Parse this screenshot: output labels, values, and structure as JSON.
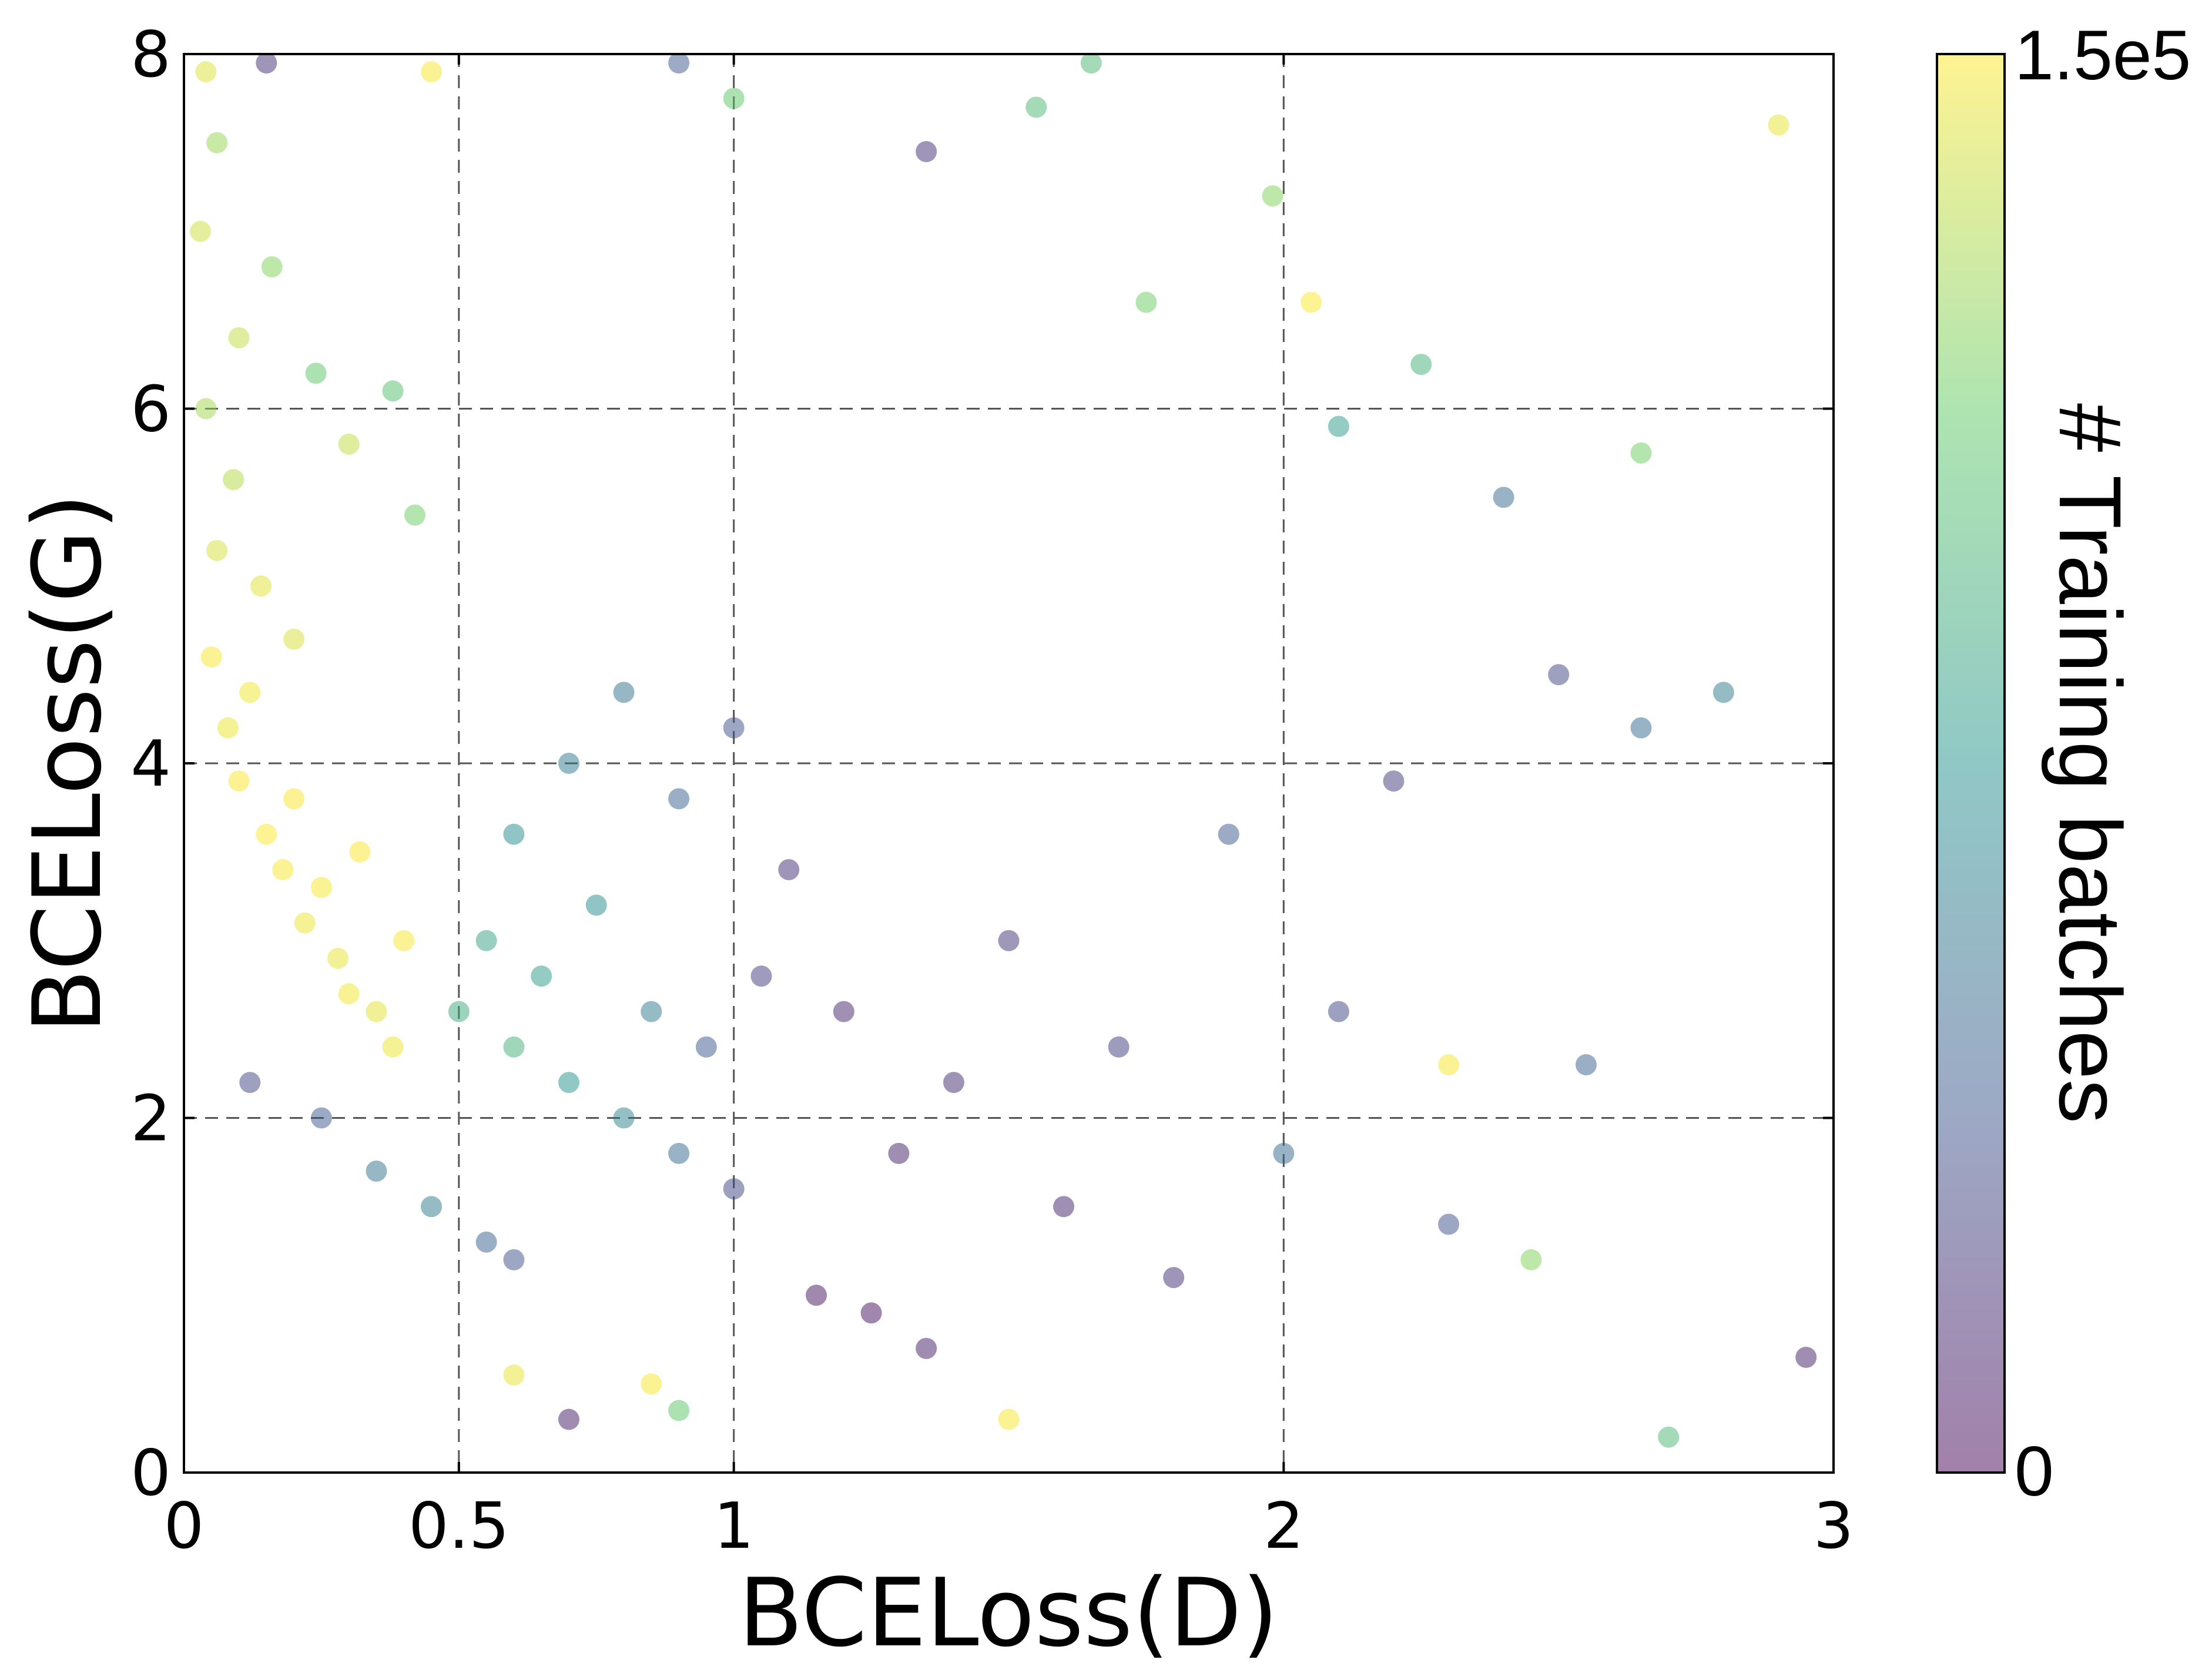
{
  "chart_data": {
    "type": "scatter",
    "title": "",
    "xlabel": "BCELoss(D)",
    "ylabel": "BCELoss(G)",
    "xlim": [
      0,
      3
    ],
    "ylim": [
      0,
      8
    ],
    "xticks": [
      {
        "value": 0,
        "label": "0"
      },
      {
        "value": 0.5,
        "label": "0.5"
      },
      {
        "value": 1,
        "label": "1"
      },
      {
        "value": 2,
        "label": "2"
      },
      {
        "value": 3,
        "label": "3"
      }
    ],
    "yticks": [
      {
        "value": 0,
        "label": "0"
      },
      {
        "value": 2,
        "label": "2"
      },
      {
        "value": 4,
        "label": "4"
      },
      {
        "value": 6,
        "label": "6"
      },
      {
        "value": 8,
        "label": "8"
      }
    ],
    "grid": true,
    "colorbar": {
      "label": "# Training batches",
      "min": 0,
      "max": 150000,
      "tick_min_label": "0",
      "tick_max_label": "1.5e5",
      "colormap": "viridis",
      "colors": [
        "#440154",
        "#3b528b",
        "#21918c",
        "#5ec962",
        "#fde725"
      ],
      "alpha": 0.5
    },
    "points": [
      {
        "x": 0.05,
        "y": 4.6,
        "c": 148000
      },
      {
        "x": 0.08,
        "y": 4.2,
        "c": 146000
      },
      {
        "x": 0.1,
        "y": 3.9,
        "c": 149000
      },
      {
        "x": 0.12,
        "y": 4.4,
        "c": 147000
      },
      {
        "x": 0.15,
        "y": 3.6,
        "c": 150000
      },
      {
        "x": 0.18,
        "y": 3.4,
        "c": 148000
      },
      {
        "x": 0.2,
        "y": 3.8,
        "c": 149000
      },
      {
        "x": 0.22,
        "y": 3.1,
        "c": 146000
      },
      {
        "x": 0.25,
        "y": 3.3,
        "c": 148000
      },
      {
        "x": 0.28,
        "y": 2.9,
        "c": 145000
      },
      {
        "x": 0.3,
        "y": 2.7,
        "c": 147000
      },
      {
        "x": 0.32,
        "y": 3.5,
        "c": 149000
      },
      {
        "x": 0.35,
        "y": 2.6,
        "c": 144000
      },
      {
        "x": 0.38,
        "y": 2.4,
        "c": 146000
      },
      {
        "x": 0.4,
        "y": 3.0,
        "c": 148000
      },
      {
        "x": 0.06,
        "y": 5.2,
        "c": 140000
      },
      {
        "x": 0.09,
        "y": 5.6,
        "c": 132000
      },
      {
        "x": 0.04,
        "y": 6.0,
        "c": 128000
      },
      {
        "x": 0.1,
        "y": 6.4,
        "c": 135000
      },
      {
        "x": 0.14,
        "y": 5.0,
        "c": 143000
      },
      {
        "x": 0.2,
        "y": 4.7,
        "c": 141000
      },
      {
        "x": 0.03,
        "y": 7.0,
        "c": 138000
      },
      {
        "x": 0.06,
        "y": 7.5,
        "c": 125000
      },
      {
        "x": 0.04,
        "y": 7.9,
        "c": 142000
      },
      {
        "x": 0.16,
        "y": 6.8,
        "c": 120000
      },
      {
        "x": 0.24,
        "y": 6.2,
        "c": 110000
      },
      {
        "x": 0.3,
        "y": 5.8,
        "c": 135000
      },
      {
        "x": 0.45,
        "y": 7.9,
        "c": 148000
      },
      {
        "x": 0.38,
        "y": 6.1,
        "c": 105000
      },
      {
        "x": 0.42,
        "y": 5.4,
        "c": 115000
      },
      {
        "x": 0.12,
        "y": 2.2,
        "c": 30000
      },
      {
        "x": 0.25,
        "y": 2.0,
        "c": 40000
      },
      {
        "x": 0.35,
        "y": 1.7,
        "c": 55000
      },
      {
        "x": 0.45,
        "y": 1.5,
        "c": 60000
      },
      {
        "x": 0.55,
        "y": 1.3,
        "c": 45000
      },
      {
        "x": 0.6,
        "y": 1.2,
        "c": 35000
      },
      {
        "x": 0.5,
        "y": 2.6,
        "c": 90000
      },
      {
        "x": 0.55,
        "y": 3.0,
        "c": 85000
      },
      {
        "x": 0.6,
        "y": 2.4,
        "c": 95000
      },
      {
        "x": 0.65,
        "y": 2.8,
        "c": 80000
      },
      {
        "x": 0.7,
        "y": 2.2,
        "c": 75000
      },
      {
        "x": 0.75,
        "y": 3.2,
        "c": 70000
      },
      {
        "x": 0.8,
        "y": 2.0,
        "c": 65000
      },
      {
        "x": 0.85,
        "y": 2.6,
        "c": 60000
      },
      {
        "x": 0.9,
        "y": 1.8,
        "c": 50000
      },
      {
        "x": 0.95,
        "y": 2.4,
        "c": 40000
      },
      {
        "x": 1.0,
        "y": 1.6,
        "c": 30000
      },
      {
        "x": 1.05,
        "y": 2.8,
        "c": 25000
      },
      {
        "x": 0.6,
        "y": 3.6,
        "c": 70000
      },
      {
        "x": 0.7,
        "y": 4.0,
        "c": 60000
      },
      {
        "x": 0.8,
        "y": 4.4,
        "c": 55000
      },
      {
        "x": 0.9,
        "y": 3.8,
        "c": 45000
      },
      {
        "x": 1.0,
        "y": 4.2,
        "c": 35000
      },
      {
        "x": 1.1,
        "y": 3.4,
        "c": 20000
      },
      {
        "x": 1.2,
        "y": 2.6,
        "c": 15000
      },
      {
        "x": 1.3,
        "y": 1.8,
        "c": 12000
      },
      {
        "x": 1.15,
        "y": 1.0,
        "c": 8000
      },
      {
        "x": 1.25,
        "y": 0.9,
        "c": 6000
      },
      {
        "x": 1.35,
        "y": 0.7,
        "c": 10000
      },
      {
        "x": 1.4,
        "y": 2.2,
        "c": 18000
      },
      {
        "x": 1.5,
        "y": 3.0,
        "c": 22000
      },
      {
        "x": 1.6,
        "y": 1.5,
        "c": 14000
      },
      {
        "x": 1.7,
        "y": 2.4,
        "c": 26000
      },
      {
        "x": 1.8,
        "y": 1.1,
        "c": 20000
      },
      {
        "x": 1.9,
        "y": 3.6,
        "c": 40000
      },
      {
        "x": 2.0,
        "y": 1.8,
        "c": 50000
      },
      {
        "x": 2.1,
        "y": 2.6,
        "c": 30000
      },
      {
        "x": 2.2,
        "y": 3.9,
        "c": 25000
      },
      {
        "x": 2.3,
        "y": 1.4,
        "c": 35000
      },
      {
        "x": 2.45,
        "y": 1.2,
        "c": 120000
      },
      {
        "x": 2.55,
        "y": 2.3,
        "c": 45000
      },
      {
        "x": 2.65,
        "y": 4.2,
        "c": 50000
      },
      {
        "x": 2.8,
        "y": 4.4,
        "c": 60000
      },
      {
        "x": 2.95,
        "y": 0.65,
        "c": 12000
      },
      {
        "x": 2.9,
        "y": 7.6,
        "c": 145000
      },
      {
        "x": 2.05,
        "y": 6.6,
        "c": 150000
      },
      {
        "x": 2.3,
        "y": 2.3,
        "c": 148000
      },
      {
        "x": 1.75,
        "y": 6.6,
        "c": 115000
      },
      {
        "x": 2.25,
        "y": 6.25,
        "c": 95000
      },
      {
        "x": 2.65,
        "y": 5.75,
        "c": 115000
      },
      {
        "x": 2.1,
        "y": 5.9,
        "c": 80000
      },
      {
        "x": 2.4,
        "y": 5.5,
        "c": 50000
      },
      {
        "x": 2.5,
        "y": 4.5,
        "c": 30000
      },
      {
        "x": 2.7,
        "y": 0.2,
        "c": 100000
      },
      {
        "x": 1.5,
        "y": 0.3,
        "c": 148000
      },
      {
        "x": 0.9,
        "y": 0.35,
        "c": 110000
      },
      {
        "x": 0.7,
        "y": 0.3,
        "c": 10000
      },
      {
        "x": 0.6,
        "y": 0.55,
        "c": 145000
      },
      {
        "x": 0.85,
        "y": 0.5,
        "c": 148000
      },
      {
        "x": 1.65,
        "y": 7.95,
        "c": 100000
      },
      {
        "x": 1.0,
        "y": 7.75,
        "c": 110000
      },
      {
        "x": 0.9,
        "y": 7.95,
        "c": 40000
      },
      {
        "x": 1.55,
        "y": 7.7,
        "c": 100000
      },
      {
        "x": 1.98,
        "y": 7.2,
        "c": 120000
      },
      {
        "x": 1.35,
        "y": 7.45,
        "c": 20000
      },
      {
        "x": 0.15,
        "y": 7.95,
        "c": 20000
      }
    ]
  }
}
